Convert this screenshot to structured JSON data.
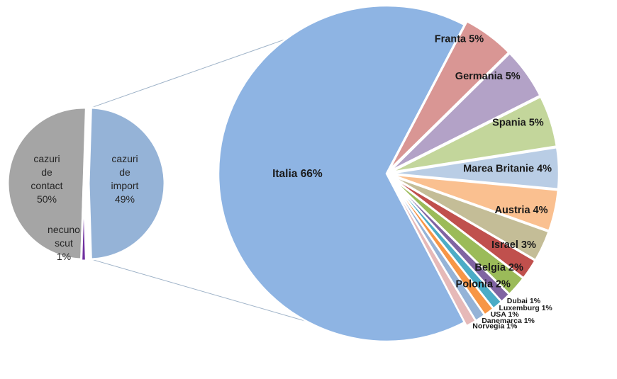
{
  "chart_data": [
    {
      "type": "pie",
      "title": "",
      "slices": [
        {
          "name": "cazuri de contact",
          "label_lines": [
            "cazuri",
            "de",
            "contact",
            "50%"
          ],
          "value": 50,
          "color": "#a5a5a5"
        },
        {
          "name": "necunoscut",
          "label_lines": [
            "necuno",
            "scut",
            "1%"
          ],
          "value": 1,
          "color": "#7030a0"
        },
        {
          "name": "cazuri de import",
          "label_lines": [
            "cazuri",
            "de",
            "import",
            "49%"
          ],
          "value": 49,
          "color": "#95b3d7"
        }
      ]
    },
    {
      "type": "pie",
      "title": "",
      "exploded_from": "cazuri de import",
      "slices": [
        {
          "name": "Italia",
          "label": "Italia 66%",
          "value": 66,
          "color": "#8eb4e3"
        },
        {
          "name": "Franta",
          "label": "Franta 5%",
          "value": 5,
          "color": "#d99694"
        },
        {
          "name": "Germania",
          "label": "Germania 5%",
          "value": 5,
          "color": "#b3a2c7"
        },
        {
          "name": "Spania",
          "label": "Spania 5%",
          "value": 5,
          "color": "#c3d69b"
        },
        {
          "name": "Marea Britanie",
          "label": "Marea Britanie 4%",
          "value": 4,
          "color": "#b9cde5"
        },
        {
          "name": "Austria",
          "label": "Austria 4%",
          "value": 4,
          "color": "#fac090"
        },
        {
          "name": "Israel",
          "label": "Israel 3%",
          "value": 3,
          "color": "#c4bd97"
        },
        {
          "name": "Belgia",
          "label": "Belgia 2%",
          "value": 2,
          "color": "#c0504d"
        },
        {
          "name": "Polonia",
          "label": "Polonia 2%",
          "value": 2,
          "color": "#9bbb59"
        },
        {
          "name": "Dubai",
          "label": "Dubai 1%",
          "value": 1,
          "color": "#8064a2"
        },
        {
          "name": "Luxemburg",
          "label": "Luxemburg 1%",
          "value": 1,
          "color": "#4bacc6"
        },
        {
          "name": "USA",
          "label": "USA 1%",
          "value": 1,
          "color": "#f79646"
        },
        {
          "name": "Danemarca",
          "label": "Danemarca 1%",
          "value": 1,
          "color": "#95b3d7"
        },
        {
          "name": "Norvegia",
          "label": "Norvegia 1%",
          "value": 1,
          "color": "#e6b9b8"
        }
      ]
    }
  ],
  "colors": {
    "background": "#ffffff",
    "connector": "#9fb3c8",
    "separator": "#ffffff"
  }
}
